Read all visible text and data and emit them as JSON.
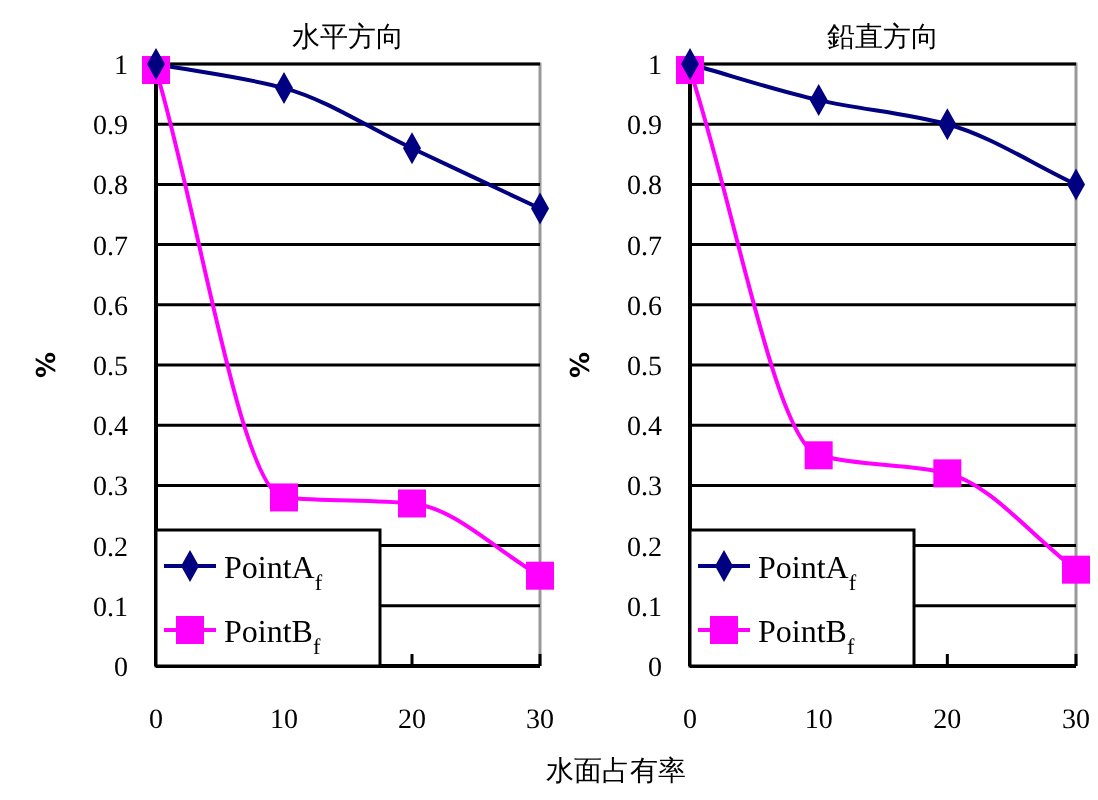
{
  "chart_data": [
    {
      "type": "line",
      "title": "水平方向",
      "xlabel": "水面占有率",
      "ylabel": "%",
      "x": [
        0,
        10,
        20,
        30
      ],
      "xlim": [
        0,
        30
      ],
      "xticks": [
        0,
        10,
        20,
        30
      ],
      "ylim": [
        0,
        1
      ],
      "yticks": [
        0,
        0.1,
        0.2,
        0.3,
        0.4,
        0.5,
        0.6,
        0.7,
        0.8,
        0.9,
        1
      ],
      "grid": "y",
      "legend": "bottom left",
      "series": [
        {
          "name": "PointA$_{f}$",
          "color": "#000080",
          "marker": "diamond",
          "values": [
            1,
            0.96,
            0.86,
            0.76
          ]
        },
        {
          "name": "PointB$_{f}$",
          "color": "#ff00ff",
          "marker": "square",
          "values": [
            0.99,
            0.28,
            0.27,
            0.15
          ]
        }
      ]
    },
    {
      "type": "line",
      "title": "鉛直方向",
      "ylabel": "%",
      "x": [
        0,
        10,
        20,
        30
      ],
      "xlim": [
        0,
        30
      ],
      "xticks": [
        0,
        10,
        20,
        30
      ],
      "ylim": [
        0,
        1
      ],
      "yticks": [
        0,
        0.1,
        0.2,
        0.3,
        0.4,
        0.5,
        0.6,
        0.7,
        0.8,
        0.9,
        1
      ],
      "grid": "y",
      "legend": "bottom left",
      "series": [
        {
          "name": "PointA$_{f}$",
          "color": "#000080",
          "marker": "diamond",
          "values": [
            1,
            0.94,
            0.9,
            0.8
          ]
        },
        {
          "name": "PointB$_{f}$",
          "color": "#ff00ff",
          "marker": "square",
          "values": [
            0.99,
            0.35,
            0.32,
            0.16
          ]
        }
      ]
    }
  ]
}
